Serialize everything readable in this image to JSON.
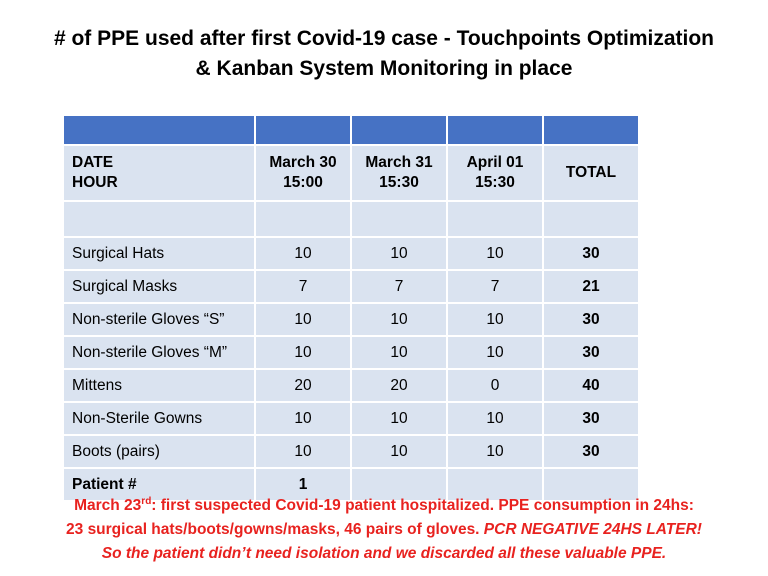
{
  "title": {
    "line1": "# of PPE used after first Covid-19 case - Touchpoints Optimization",
    "line2": "& Kanban System Monitoring in place"
  },
  "table": {
    "header_label": [
      "DATE",
      "HOUR"
    ],
    "columns": [
      {
        "date": "March 30",
        "hour": "15:00"
      },
      {
        "date": "March 31",
        "hour": "15:30"
      },
      {
        "date": "April 01",
        "hour": "15:30"
      }
    ],
    "total_header": "TOTAL",
    "rows": [
      {
        "label": "Surgical Hats",
        "values": [
          "10",
          "10",
          "10"
        ],
        "total": "30"
      },
      {
        "label": "Surgical Masks",
        "values": [
          "7",
          "7",
          "7"
        ],
        "total": "21"
      },
      {
        "label": "Non-sterile Gloves “S”",
        "values": [
          "10",
          "10",
          "10"
        ],
        "total": "30"
      },
      {
        "label": "Non-sterile Gloves “M”",
        "values": [
          "10",
          "10",
          "10"
        ],
        "total": "30"
      },
      {
        "label": "Mittens",
        "values": [
          "20",
          "20",
          "0"
        ],
        "total": "40"
      },
      {
        "label": "Non-Sterile Gowns",
        "values": [
          "10",
          "10",
          "10"
        ],
        "total": "30"
      },
      {
        "label": "Boots (pairs)",
        "values": [
          "10",
          "10",
          "10"
        ],
        "total": "30"
      }
    ],
    "patient": {
      "label": "Patient #",
      "values": [
        "1",
        "",
        ""
      ],
      "total": ""
    }
  },
  "footnote": {
    "l1_a": "March 23",
    "l1_sup": "rd",
    "l1_b": ": first suspected Covid-19 patient hospitalized. PPE consumption in 24hs:",
    "l2_a": "23 surgical hats/boots/gowns/masks, 46 pairs of gloves. ",
    "l2_b": "PCR NEGATIVE 24HS LATER!",
    "l3": "So the patient didn’t need isolation and we discarded all these valuable PPE."
  },
  "colors": {
    "header_band": "#4672c4",
    "cell_fill": "#dae3f0",
    "footnote_text": "#e8221f"
  }
}
